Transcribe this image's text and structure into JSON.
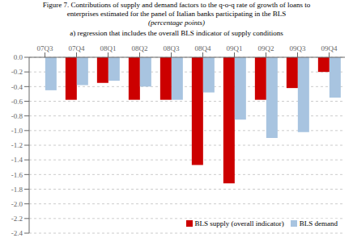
{
  "chart_data": {
    "type": "bar",
    "title": [
      "Figure 7. Contributions of supply and demand factors to the q-o-q rate of growth of loans to",
      "enterprises estimated for the panel of Italian banks participating in the BLS",
      "(percentage points)"
    ],
    "subtitle": "a) regression that includes the overall BLS indicator of supply conditions",
    "categories": [
      "07Q3",
      "07Q4",
      "08Q1",
      "08Q2",
      "08Q3",
      "08Q4",
      "09Q1",
      "09Q2",
      "09Q3",
      "09Q4"
    ],
    "series": [
      {
        "name": "BLS supply (overall indicator)",
        "color": "#cc0000",
        "values": [
          0.0,
          -0.58,
          -0.35,
          -0.58,
          -0.58,
          -1.47,
          -1.72,
          -0.58,
          -0.42,
          -0.2
        ]
      },
      {
        "name": "BLS demand",
        "color": "#a8c4e0",
        "values": [
          -0.45,
          -0.38,
          -0.32,
          -0.4,
          -0.58,
          -0.48,
          -0.85,
          -1.1,
          -1.02,
          -0.55
        ]
      }
    ],
    "ylim": [
      -2.4,
      0.0
    ],
    "yticks": [
      {
        "value": 0.0,
        "label": "0.0"
      },
      -0.2,
      -0.4,
      -0.6,
      -0.8,
      {
        "value": -1.0,
        "label": "-1.0"
      },
      -1.2,
      -1.4,
      -1.6,
      -1.8,
      {
        "value": -2.0,
        "label": "-2.0"
      },
      -2.2,
      -2.4
    ],
    "grid": true,
    "legend": "lower right"
  }
}
